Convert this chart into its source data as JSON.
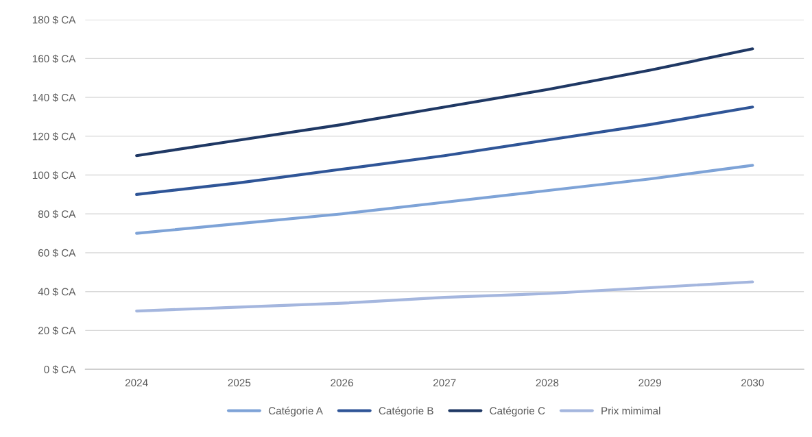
{
  "chart_data": {
    "type": "line",
    "categories": [
      "2024",
      "2025",
      "2026",
      "2027",
      "2028",
      "2029",
      "2030"
    ],
    "series": [
      {
        "name": "Catégorie A",
        "color": "#7ea3d7",
        "values": [
          70,
          75,
          80,
          86,
          92,
          98,
          105
        ]
      },
      {
        "name": "Catégorie B",
        "color": "#2f5597",
        "values": [
          90,
          96,
          103,
          110,
          118,
          126,
          135
        ]
      },
      {
        "name": "Catégorie C",
        "color": "#1f3864",
        "values": [
          110,
          118,
          126,
          135,
          144,
          154,
          165
        ]
      },
      {
        "name": "Prix mimimal",
        "color": "#a4b6de",
        "values": [
          30,
          32,
          34,
          37,
          39,
          42,
          45
        ]
      }
    ],
    "ylim": [
      0,
      180
    ],
    "yticks": [
      {
        "value": 0,
        "label": "0 $ CA"
      },
      {
        "value": 20,
        "label": "20 $ CA"
      },
      {
        "value": 40,
        "label": "40 $ CA"
      },
      {
        "value": 60,
        "label": "60 $ CA"
      },
      {
        "value": 80,
        "label": "80 $ CA"
      },
      {
        "value": 100,
        "label": "100 $ CA"
      },
      {
        "value": 120,
        "label": "120 $ CA"
      },
      {
        "value": 140,
        "label": "140 $ CA"
      },
      {
        "value": 160,
        "label": "160 $ CA"
      },
      {
        "value": 180,
        "label": "180 $ CA"
      }
    ],
    "grid": "y",
    "legend": "bottom",
    "marker": "none",
    "line_style": "solid"
  }
}
